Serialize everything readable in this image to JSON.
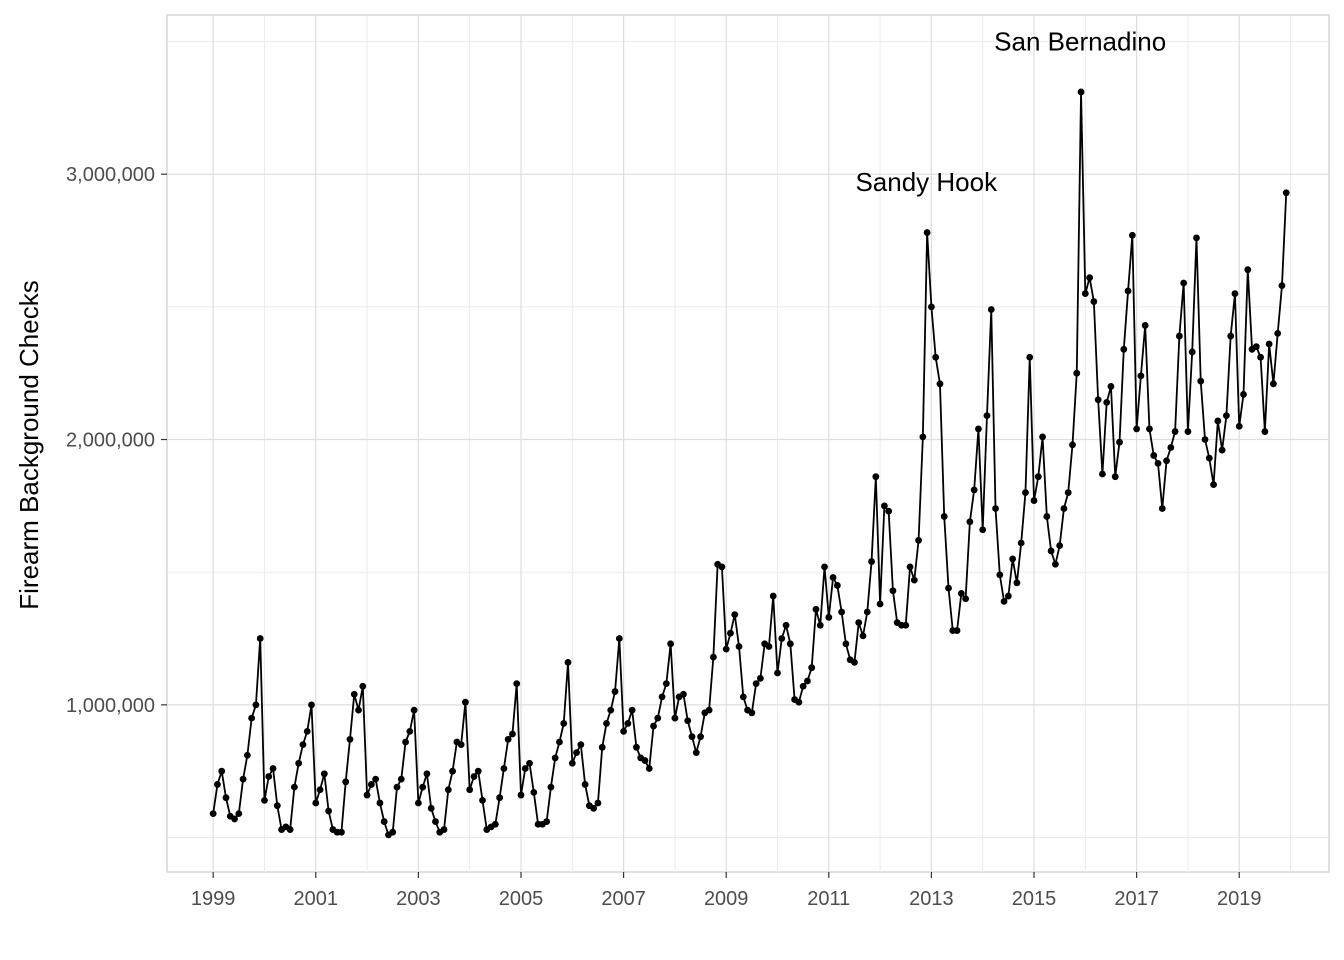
{
  "chart_data": {
    "type": "line",
    "title": "",
    "xlabel": "",
    "ylabel": "Firearm Background Checks",
    "x_range": [
      1998.1,
      2020.75
    ],
    "ylim": [
      370000,
      3600000
    ],
    "x_ticks": [
      1999,
      2001,
      2003,
      2005,
      2007,
      2009,
      2011,
      2013,
      2015,
      2017,
      2019
    ],
    "x_tick_labels": [
      "1999",
      "2001",
      "2003",
      "2005",
      "2007",
      "2009",
      "2011",
      "2013",
      "2015",
      "2017",
      "2019"
    ],
    "y_ticks": [
      1000000,
      2000000,
      3000000
    ],
    "y_tick_labels": [
      "1,000,000",
      "2,000,000",
      "3,000,000"
    ],
    "grid": true,
    "line_color": "#000000",
    "annotations": [
      {
        "label": "Sandy Hook",
        "x": 2012.9,
        "y": 2970000
      },
      {
        "label": "San Bernadino",
        "x": 2015.9,
        "y": 3500000
      }
    ],
    "series": [
      {
        "name": "",
        "start_year": 1999,
        "start_month": 1,
        "values": [
          590000,
          700000,
          750000,
          650000,
          580000,
          570000,
          590000,
          720000,
          810000,
          950000,
          1000000,
          1250000,
          640000,
          730000,
          760000,
          620000,
          530000,
          540000,
          530000,
          690000,
          780000,
          850000,
          900000,
          1000000,
          630000,
          680000,
          740000,
          600000,
          530000,
          520000,
          520000,
          710000,
          870000,
          1040000,
          980000,
          1070000,
          660000,
          700000,
          720000,
          630000,
          560000,
          510000,
          520000,
          690000,
          720000,
          860000,
          900000,
          980000,
          630000,
          690000,
          740000,
          610000,
          560000,
          520000,
          530000,
          680000,
          750000,
          860000,
          850000,
          1010000,
          680000,
          730000,
          750000,
          640000,
          530000,
          540000,
          550000,
          650000,
          760000,
          870000,
          890000,
          1080000,
          660000,
          760000,
          780000,
          670000,
          550000,
          550000,
          560000,
          690000,
          800000,
          860000,
          930000,
          1160000,
          780000,
          820000,
          850000,
          700000,
          620000,
          610000,
          630000,
          840000,
          930000,
          980000,
          1050000,
          1250000,
          900000,
          930000,
          980000,
          840000,
          800000,
          790000,
          760000,
          920000,
          950000,
          1030000,
          1080000,
          1230000,
          950000,
          1030000,
          1040000,
          940000,
          880000,
          820000,
          880000,
          970000,
          980000,
          1180000,
          1530000,
          1520000,
          1210000,
          1270000,
          1340000,
          1220000,
          1030000,
          980000,
          970000,
          1080000,
          1100000,
          1230000,
          1220000,
          1410000,
          1120000,
          1250000,
          1300000,
          1230000,
          1020000,
          1010000,
          1070000,
          1090000,
          1140000,
          1360000,
          1300000,
          1520000,
          1330000,
          1480000,
          1450000,
          1350000,
          1230000,
          1170000,
          1160000,
          1310000,
          1260000,
          1350000,
          1540000,
          1860000,
          1380000,
          1750000,
          1730000,
          1430000,
          1310000,
          1300000,
          1300000,
          1520000,
          1470000,
          1620000,
          2010000,
          2780000,
          2500000,
          2310000,
          2210000,
          1710000,
          1440000,
          1280000,
          1280000,
          1420000,
          1400000,
          1690000,
          1810000,
          2040000,
          1660000,
          2090000,
          2490000,
          1740000,
          1490000,
          1390000,
          1410000,
          1550000,
          1460000,
          1610000,
          1800000,
          2310000,
          1770000,
          1860000,
          2010000,
          1710000,
          1580000,
          1530000,
          1600000,
          1740000,
          1800000,
          1980000,
          2250000,
          3310000,
          2550000,
          2610000,
          2520000,
          2150000,
          1870000,
          2140000,
          2200000,
          1860000,
          1990000,
          2340000,
          2560000,
          2770000,
          2040000,
          2240000,
          2430000,
          2040000,
          1940000,
          1910000,
          1740000,
          1920000,
          1970000,
          2030000,
          2390000,
          2590000,
          2030000,
          2330000,
          2760000,
          2220000,
          2000000,
          1930000,
          1830000,
          2070000,
          1960000,
          2090000,
          2390000,
          2550000,
          2050000,
          2170000,
          2640000,
          2340000,
          2350000,
          2310000,
          2030000,
          2360000,
          2210000,
          2400000,
          2580000,
          2930000
        ]
      }
    ]
  }
}
